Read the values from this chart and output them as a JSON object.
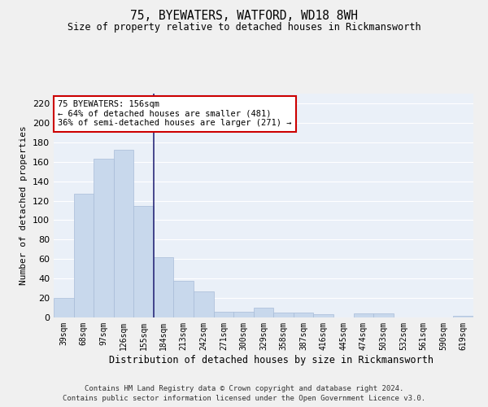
{
  "title": "75, BYEWATERS, WATFORD, WD18 8WH",
  "subtitle": "Size of property relative to detached houses in Rickmansworth",
  "xlabel": "Distribution of detached houses by size in Rickmansworth",
  "ylabel": "Number of detached properties",
  "categories": [
    "39sqm",
    "68sqm",
    "97sqm",
    "126sqm",
    "155sqm",
    "184sqm",
    "213sqm",
    "242sqm",
    "271sqm",
    "300sqm",
    "329sqm",
    "358sqm",
    "387sqm",
    "416sqm",
    "445sqm",
    "474sqm",
    "503sqm",
    "532sqm",
    "561sqm",
    "590sqm",
    "619sqm"
  ],
  "values": [
    20,
    127,
    163,
    172,
    115,
    62,
    38,
    27,
    6,
    6,
    10,
    5,
    5,
    3,
    0,
    4,
    4,
    0,
    0,
    0,
    2
  ],
  "bar_color": "#c8d8ec",
  "bar_edge_color": "#a8bcd8",
  "vline_x": 4.5,
  "vline_color": "#2b2b7a",
  "annotation_text": "75 BYEWATERS: 156sqm\n← 64% of detached houses are smaller (481)\n36% of semi-detached houses are larger (271) →",
  "annotation_box_color": "#ffffff",
  "annotation_box_edge": "#cc0000",
  "ylim": [
    0,
    230
  ],
  "yticks": [
    0,
    20,
    40,
    60,
    80,
    100,
    120,
    140,
    160,
    180,
    200,
    220
  ],
  "background_color": "#eaf0f8",
  "grid_color": "#ffffff",
  "footer1": "Contains HM Land Registry data © Crown copyright and database right 2024.",
  "footer2": "Contains public sector information licensed under the Open Government Licence v3.0."
}
